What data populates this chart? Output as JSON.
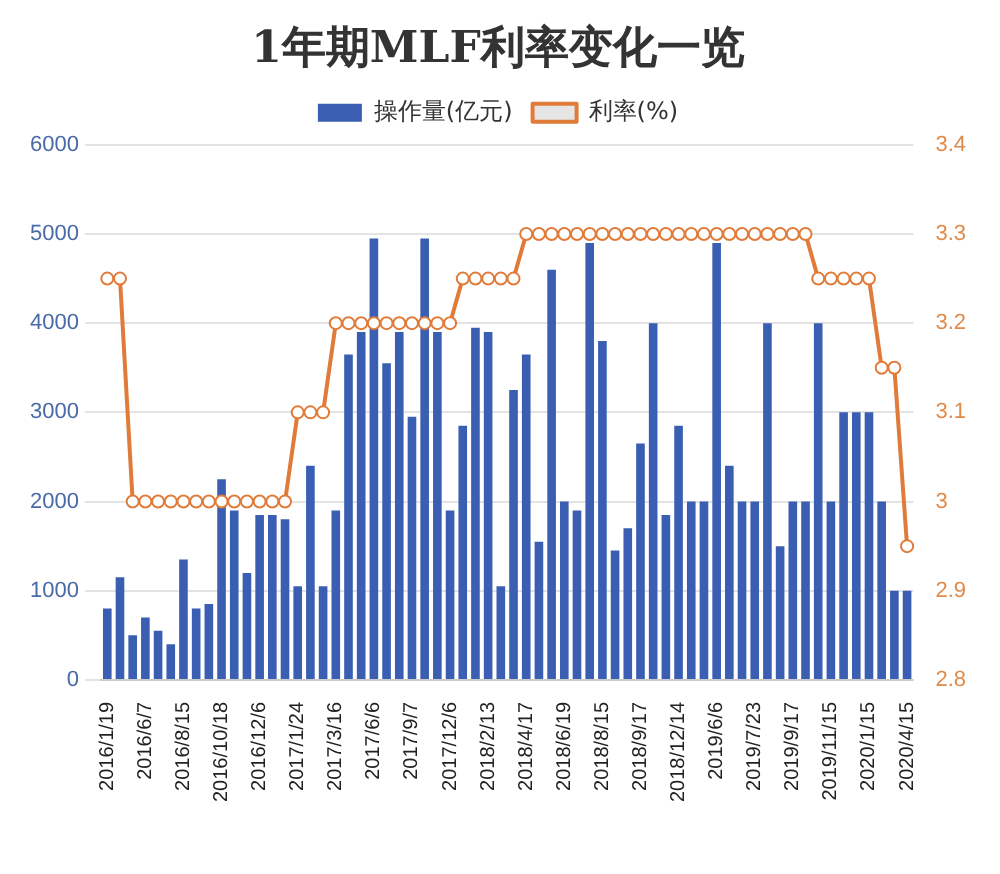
{
  "chart_data": {
    "type": "bar",
    "title": "1年期MLF利率变化一览",
    "categories": [
      "2016/1/19",
      null,
      null,
      "2016/6/7",
      null,
      null,
      "2016/8/15",
      null,
      null,
      "2016/10/18",
      null,
      null,
      "2016/12/6",
      null,
      null,
      "2017/1/24",
      null,
      null,
      "2017/3/16",
      null,
      null,
      "2017/6/6",
      null,
      null,
      "2017/9/7",
      null,
      null,
      "2017/12/6",
      null,
      null,
      "2018/2/13",
      null,
      null,
      "2018/4/17",
      null,
      null,
      "2018/6/19",
      null,
      null,
      "2018/8/15",
      null,
      null,
      "2018/9/17",
      null,
      null,
      "2018/12/14",
      null,
      null,
      "2019/6/6",
      null,
      null,
      "2019/7/23",
      null,
      null,
      "2019/9/17",
      null,
      null,
      "2019/11/15",
      null,
      null,
      "2020/1/15",
      null,
      null,
      "2020/4/15"
    ],
    "series": [
      {
        "name": "操作量(亿元)",
        "color": "#3a5fb2",
        "values": [
          800,
          1150,
          500,
          700,
          550,
          400,
          1350,
          800,
          850,
          2250,
          1900,
          1200,
          1850,
          1850,
          1800,
          1050,
          2400,
          1050,
          1900,
          3650,
          3900,
          4950,
          3550,
          3900,
          2950,
          4950,
          3900,
          1900,
          2850,
          3950,
          3900,
          1050,
          3250,
          3650,
          1550,
          4600,
          2000,
          1900,
          4900,
          3800,
          1450,
          1700,
          2650,
          4000,
          1850,
          2850,
          2000,
          2000,
          4900,
          2400,
          2000,
          2000,
          4000,
          1500,
          2000,
          2000,
          4000,
          2000,
          3000,
          3000,
          3000,
          2000,
          1000,
          1000
        ]
      },
      {
        "name": "利率(%)",
        "type": "line",
        "axis": "y2",
        "color": "#e07b39",
        "marker": "circle",
        "values": [
          3.25,
          3.25,
          3,
          3,
          3,
          3,
          3,
          3,
          3,
          3,
          3,
          3,
          3,
          3,
          3,
          3.1,
          3.1,
          3.1,
          3.2,
          3.2,
          3.2,
          3.2,
          3.2,
          3.2,
          3.2,
          3.2,
          3.2,
          3.2,
          3.25,
          3.25,
          3.25,
          3.25,
          3.25,
          3.3,
          3.3,
          3.3,
          3.3,
          3.3,
          3.3,
          3.3,
          3.3,
          3.3,
          3.3,
          3.3,
          3.3,
          3.3,
          3.3,
          3.3,
          3.3,
          3.3,
          3.3,
          3.3,
          3.3,
          3.3,
          3.3,
          3.3,
          3.25,
          3.25,
          3.25,
          3.25,
          3.25,
          3.15,
          3.15,
          2.95
        ]
      }
    ],
    "ylim": [
      0,
      6000
    ],
    "yticks": [
      0,
      1000,
      2000,
      3000,
      4000,
      5000,
      6000
    ],
    "y2lim": [
      2.8,
      3.4
    ],
    "y2ticks": [
      2.8,
      2.9,
      3,
      3.1,
      3.2,
      3.3,
      3.4
    ],
    "grid": "y",
    "legend": "top"
  }
}
